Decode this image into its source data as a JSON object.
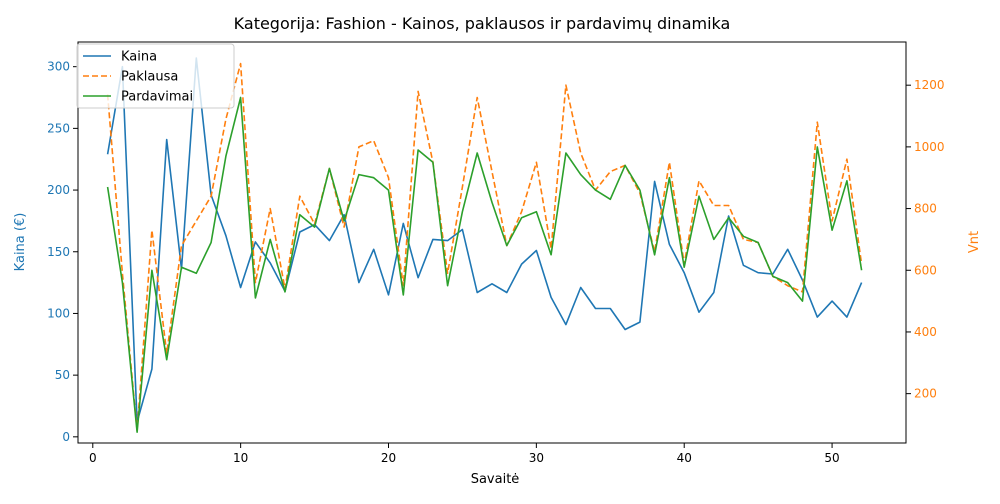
{
  "chart_data": {
    "type": "line",
    "title": "Kategorija: Fashion - Kainos, paklausos ir pardavimų dinamika",
    "xlabel": "Savaitė",
    "ylabel_left": "Kaina (€)",
    "ylabel_right": "Vnt",
    "xlim": [
      -1,
      55
    ],
    "ylim_left": [
      -5,
      320
    ],
    "ylim_right": [
      40,
      1340
    ],
    "x_ticks": [
      0,
      10,
      20,
      30,
      40,
      50
    ],
    "y_ticks_left": [
      0,
      50,
      100,
      150,
      200,
      250,
      300
    ],
    "y_ticks_right": [
      200,
      400,
      600,
      800,
      1000,
      1200
    ],
    "legend_position": "top-left",
    "colors": {
      "left_axis": "#1f77b4",
      "right_axis": "#ff7f0e",
      "kaina": "#1f77b4",
      "paklausa": "#ff7f0e",
      "pardavimai": "#2ca02c"
    },
    "x": [
      1,
      2,
      3,
      4,
      5,
      6,
      7,
      8,
      9,
      10,
      11,
      12,
      13,
      14,
      15,
      16,
      17,
      18,
      19,
      20,
      21,
      22,
      23,
      24,
      25,
      26,
      27,
      28,
      29,
      30,
      31,
      32,
      33,
      34,
      35,
      36,
      37,
      38,
      39,
      40,
      41,
      42,
      43,
      44,
      45,
      46,
      47,
      48,
      49,
      50,
      51,
      52
    ],
    "series": [
      {
        "name": "Kaina",
        "axis": "left",
        "style": "solid",
        "values": [
          229,
          300,
          12,
          55,
          241,
          136,
          307,
          196,
          163,
          121,
          158,
          141,
          118,
          166,
          172,
          159,
          180,
          125,
          152,
          115,
          173,
          129,
          160,
          159,
          168,
          117,
          124,
          117,
          140,
          151,
          113,
          91,
          121,
          104,
          104,
          87,
          93,
          207,
          156,
          133,
          101,
          117,
          179,
          139,
          133,
          132,
          152,
          127,
          97,
          110,
          97,
          125
        ]
      },
      {
        "name": "Paklausa",
        "axis": "right",
        "style": "dashed",
        "values": [
          1170,
          590,
          80,
          730,
          330,
          680,
          760,
          840,
          1090,
          1270,
          560,
          800,
          540,
          840,
          750,
          930,
          740,
          1000,
          1020,
          900,
          550,
          1180,
          950,
          590,
          870,
          1160,
          920,
          680,
          790,
          950,
          670,
          1200,
          980,
          860,
          920,
          940,
          850,
          660,
          950,
          620,
          890,
          810,
          810,
          700,
          690,
          580,
          550,
          530,
          1080,
          760,
          960,
          620
        ]
      },
      {
        "name": "Pardavimai",
        "axis": "right",
        "style": "solid",
        "values": [
          870,
          560,
          75,
          600,
          310,
          610,
          590,
          690,
          970,
          1160,
          510,
          700,
          530,
          780,
          740,
          930,
          760,
          910,
          900,
          860,
          520,
          990,
          950,
          550,
          790,
          980,
          820,
          680,
          770,
          790,
          650,
          980,
          910,
          860,
          830,
          940,
          860,
          650,
          900,
          610,
          840,
          700,
          770,
          710,
          690,
          580,
          560,
          500,
          1000,
          730,
          890,
          600
        ]
      }
    ]
  }
}
